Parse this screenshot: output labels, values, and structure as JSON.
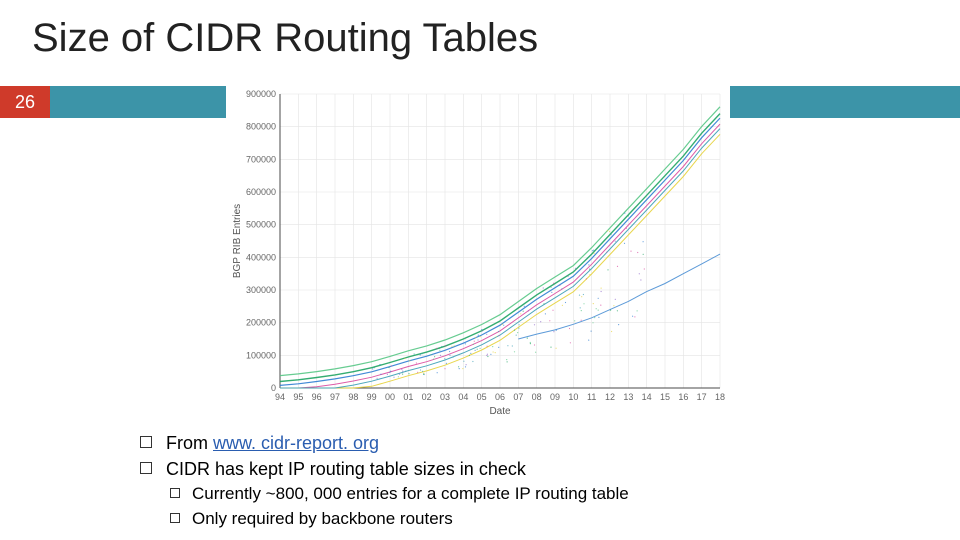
{
  "slide": {
    "title": "Size of CIDR Routing Tables",
    "number": "26",
    "bar_color": "#3c94a8",
    "number_box_color": "#cf3a2a"
  },
  "bullets": {
    "b1_pre": "From ",
    "b1_link": "www. cidr-report. org",
    "b2": "CIDR has kept IP routing table sizes in check",
    "s1": "Currently ~800, 000 entries for a complete IP routing table",
    "s2": "Only required by backbone routers"
  },
  "chart": {
    "type": "line",
    "ylabel": "BGP RIB Entries",
    "xlabel": "Date",
    "plot_bg": "#ffffff",
    "grid_color": "#e4e4e4",
    "axis_color": "#4a4a4a",
    "tick_font_size": 9,
    "label_font_size": 10,
    "xlim": [
      94,
      118
    ],
    "ylim": [
      0,
      900000
    ],
    "xtick_start": 94,
    "xtick_step": 1,
    "xtick_count": 25,
    "xtick_labels": [
      "94",
      "95",
      "96",
      "97",
      "98",
      "99",
      "00",
      "01",
      "02",
      "03",
      "04",
      "05",
      "06",
      "07",
      "08",
      "09",
      "10",
      "11",
      "12",
      "13",
      "14",
      "15",
      "16",
      "17",
      "18"
    ],
    "ytick_start": 0,
    "ytick_step": 100000,
    "ytick_count": 10,
    "ytick_labels": [
      "0",
      "100000",
      "200000",
      "300000",
      "400000",
      "500000",
      "600000",
      "700000",
      "800000",
      "900000"
    ],
    "series": [
      {
        "color": "#1ea463",
        "width": 1.4
      },
      {
        "color": "#2e7dd1",
        "width": 1.2
      },
      {
        "color": "#d94a9e",
        "width": 1.0
      },
      {
        "color": "#e6d13a",
        "width": 1.0
      },
      {
        "color": "#57c785",
        "width": 1.2
      },
      {
        "color": "#3a9fb5",
        "width": 1.0
      }
    ],
    "base_curve": [
      [
        94,
        20000
      ],
      [
        95,
        25000
      ],
      [
        96,
        32000
      ],
      [
        97,
        40000
      ],
      [
        98,
        50000
      ],
      [
        99,
        62000
      ],
      [
        100,
        78000
      ],
      [
        101,
        95000
      ],
      [
        102,
        110000
      ],
      [
        103,
        128000
      ],
      [
        104,
        150000
      ],
      [
        105,
        175000
      ],
      [
        106,
        205000
      ],
      [
        107,
        245000
      ],
      [
        108,
        285000
      ],
      [
        109,
        320000
      ],
      [
        110,
        355000
      ],
      [
        111,
        410000
      ],
      [
        112,
        470000
      ],
      [
        113,
        530000
      ],
      [
        114,
        590000
      ],
      [
        115,
        650000
      ],
      [
        116,
        710000
      ],
      [
        117,
        780000
      ],
      [
        118,
        840000
      ]
    ],
    "series_offsets": [
      0,
      -12000,
      -28000,
      -55000,
      18000,
      -40000
    ],
    "low_outlier": {
      "color": "#4a8fd4",
      "width": 1.0,
      "points": [
        [
          107,
          150000
        ],
        [
          108,
          165000
        ],
        [
          109,
          178000
        ],
        [
          110,
          195000
        ],
        [
          111,
          215000
        ],
        [
          112,
          240000
        ],
        [
          113,
          265000
        ],
        [
          114,
          295000
        ],
        [
          115,
          320000
        ],
        [
          116,
          350000
        ],
        [
          117,
          380000
        ],
        [
          118,
          410000
        ]
      ]
    },
    "scatter": {
      "count": 180,
      "x_range": [
        99,
        114
      ],
      "y_range_scale": [
        0.35,
        1.05
      ],
      "color_pool": [
        "#1ea463",
        "#2e7dd1",
        "#d94a9e",
        "#e6d13a",
        "#57c785",
        "#3a9fb5",
        "#8a5fc7"
      ],
      "radius": 0.6
    }
  }
}
